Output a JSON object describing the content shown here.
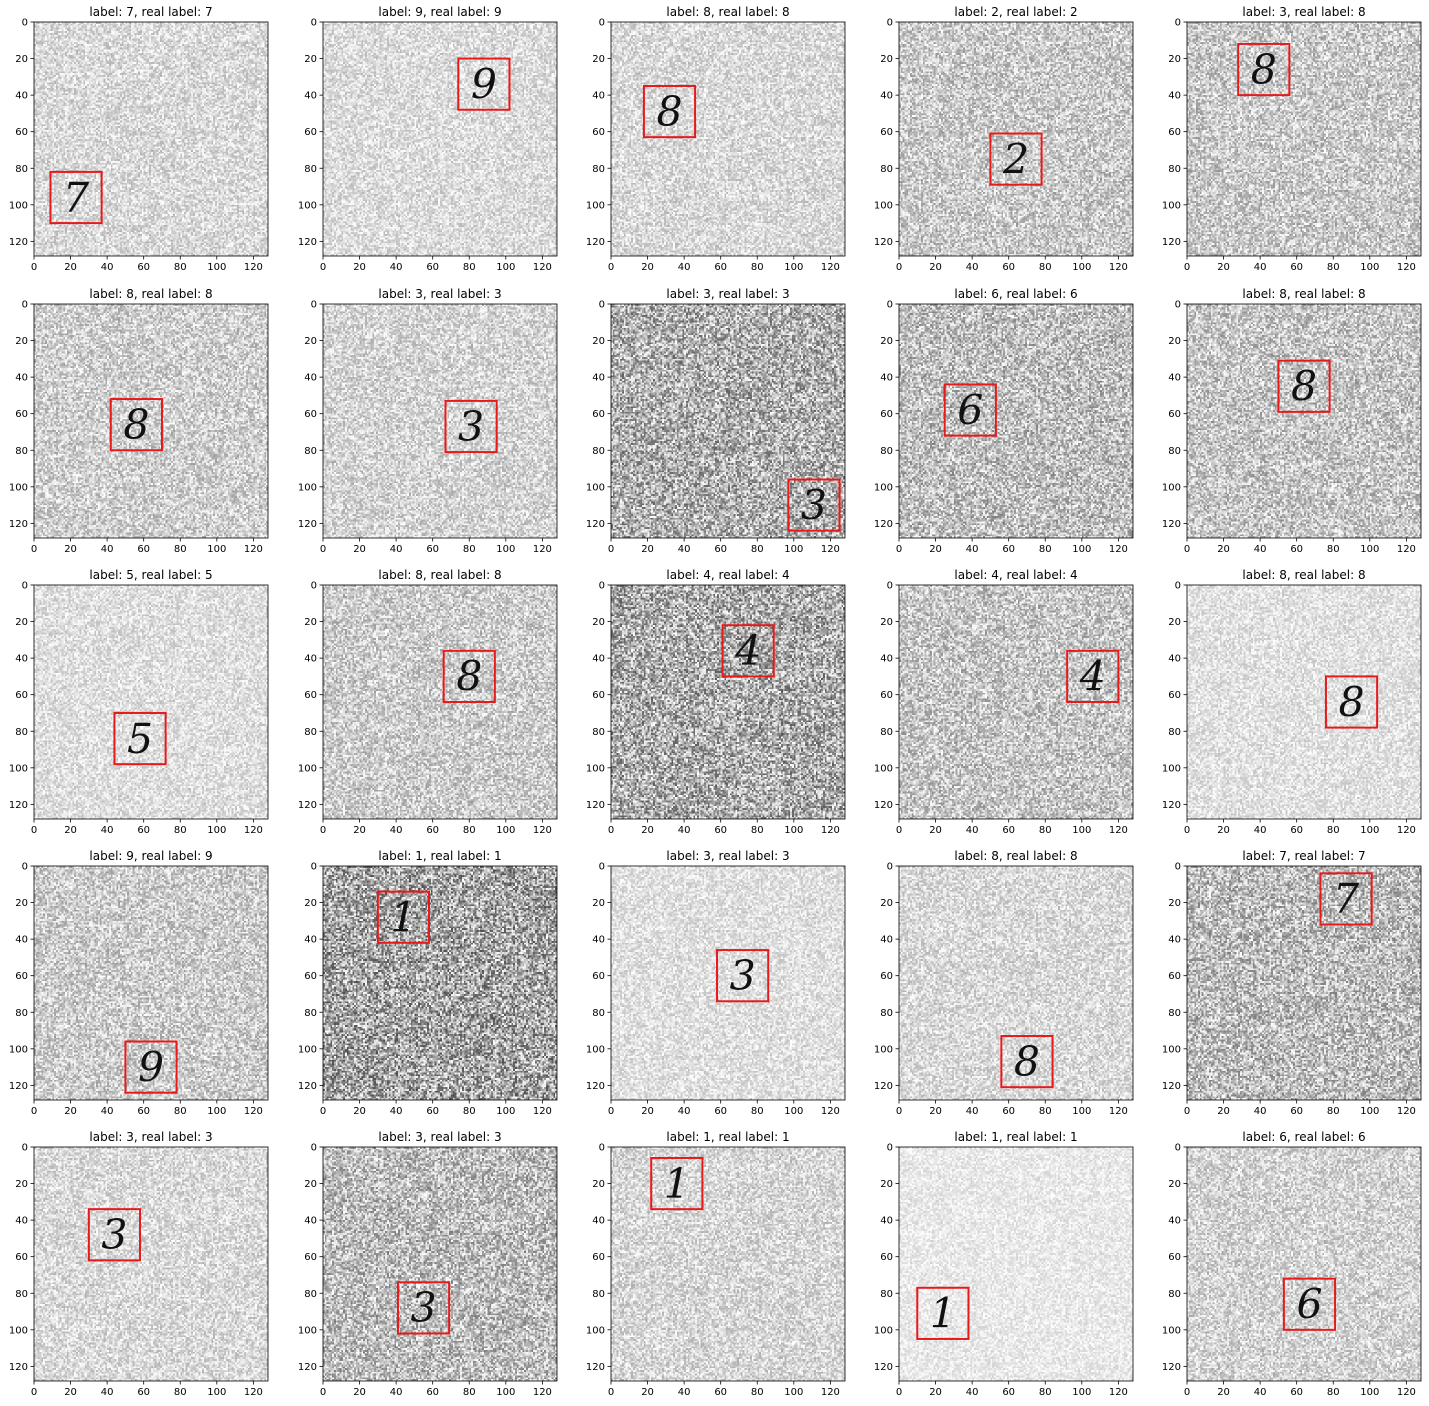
{
  "chart_data": {
    "type": "image-grid",
    "rows": 5,
    "cols": 5,
    "xlim": [
      0,
      128
    ],
    "ylim": [
      128,
      0
    ],
    "x_ticks": [
      0,
      20,
      40,
      60,
      80,
      100,
      120
    ],
    "y_ticks": [
      0,
      20,
      40,
      60,
      80,
      100,
      120
    ],
    "box_color": "#e8191b",
    "panels": [
      {
        "title": "label: 7, real label: 7",
        "digit": "7",
        "box": [
          9,
          82,
          37,
          110
        ],
        "noise": 0.3
      },
      {
        "title": "label: 9, real label: 9",
        "digit": "9",
        "box": [
          74,
          20,
          102,
          48
        ],
        "noise": 0.28
      },
      {
        "title": "label: 8, real label: 8",
        "digit": "8",
        "box": [
          18,
          35,
          46,
          63
        ],
        "noise": 0.3
      },
      {
        "title": "label: 2, real label: 2",
        "digit": "2",
        "box": [
          50,
          61,
          78,
          89
        ],
        "noise": 0.42
      },
      {
        "title": "label: 3, real label: 8",
        "digit": "8",
        "box": [
          28,
          12,
          56,
          40
        ],
        "noise": 0.42
      },
      {
        "title": "label: 8, real label: 8",
        "digit": "8",
        "box": [
          42,
          52,
          70,
          80
        ],
        "noise": 0.38
      },
      {
        "title": "label: 3, real label: 3",
        "digit": "3",
        "box": [
          67,
          53,
          95,
          81
        ],
        "noise": 0.34
      },
      {
        "title": "label: 3, real label: 3",
        "digit": "3",
        "box": [
          97,
          96,
          125,
          124
        ],
        "noise": 0.62
      },
      {
        "title": "label: 6, real label: 6",
        "digit": "6",
        "box": [
          25,
          44,
          53,
          72
        ],
        "noise": 0.5
      },
      {
        "title": "label: 8, real label: 8",
        "digit": "8",
        "box": [
          50,
          31,
          78,
          59
        ],
        "noise": 0.45
      },
      {
        "title": "label: 5, real label: 5",
        "digit": "5",
        "box": [
          44,
          70,
          72,
          98
        ],
        "noise": 0.26
      },
      {
        "title": "label: 8, real label: 8",
        "digit": "8",
        "box": [
          66,
          36,
          94,
          64
        ],
        "noise": 0.4
      },
      {
        "title": "label: 4, real label: 4",
        "digit": "4",
        "box": [
          61,
          22,
          89,
          50
        ],
        "noise": 0.65
      },
      {
        "title": "label: 4, real label: 4",
        "digit": "4",
        "box": [
          92,
          36,
          120,
          64
        ],
        "noise": 0.45
      },
      {
        "title": "label: 8, real label: 8",
        "digit": "8",
        "box": [
          76,
          50,
          104,
          78
        ],
        "noise": 0.24
      },
      {
        "title": "label: 9, real label: 9",
        "digit": "9",
        "box": [
          50,
          96,
          78,
          124
        ],
        "noise": 0.4
      },
      {
        "title": "label: 1, real label: 1",
        "digit": "1",
        "box": [
          30,
          14,
          58,
          42
        ],
        "noise": 0.7
      },
      {
        "title": "label: 3, real label: 3",
        "digit": "3",
        "box": [
          58,
          46,
          86,
          74
        ],
        "noise": 0.25
      },
      {
        "title": "label: 8, real label: 8",
        "digit": "8",
        "box": [
          56,
          93,
          84,
          121
        ],
        "noise": 0.3
      },
      {
        "title": "label: 7, real label: 7",
        "digit": "7",
        "box": [
          73,
          4,
          101,
          32
        ],
        "noise": 0.52
      },
      {
        "title": "label: 3, real label: 3",
        "digit": "3",
        "box": [
          30,
          34,
          58,
          62
        ],
        "noise": 0.3
      },
      {
        "title": "label: 3, real label: 3",
        "digit": "3",
        "box": [
          41,
          74,
          69,
          102
        ],
        "noise": 0.52
      },
      {
        "title": "label: 1, real label: 1",
        "digit": "1",
        "box": [
          22,
          6,
          50,
          34
        ],
        "noise": 0.32
      },
      {
        "title": "label: 1, real label: 1",
        "digit": "1",
        "box": [
          10,
          77,
          38,
          105
        ],
        "noise": 0.18
      },
      {
        "title": "label: 6, real label: 6",
        "digit": "6",
        "box": [
          53,
          72,
          81,
          100
        ],
        "noise": 0.35
      }
    ]
  }
}
